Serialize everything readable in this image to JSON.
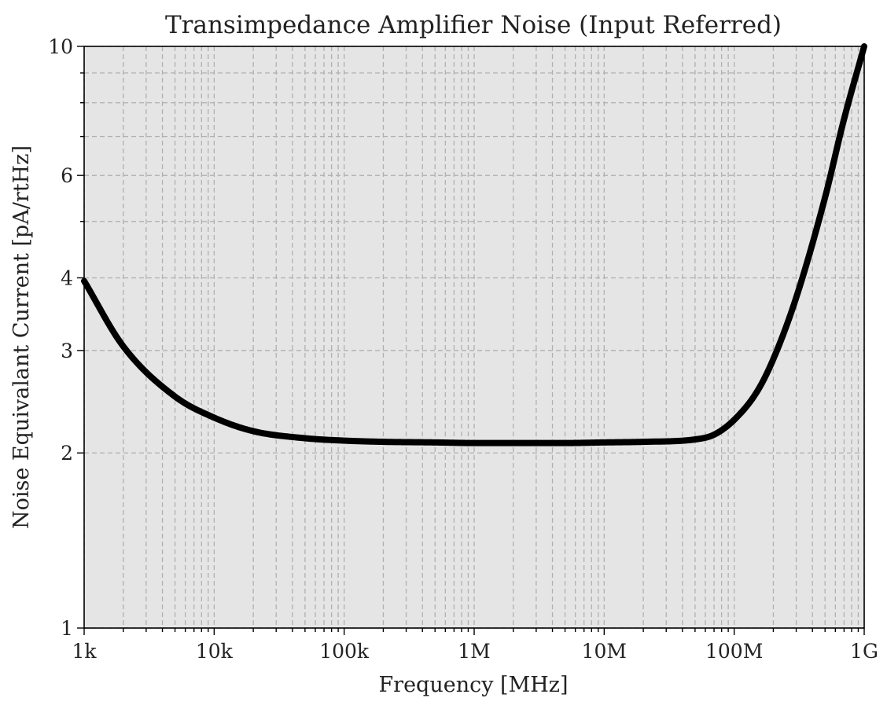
{
  "chart_data": {
    "type": "line",
    "title": "Transimpedance Amplifier Noise (Input Referred)",
    "xlabel": "Frequency [MHz]",
    "ylabel": "Noise Equivalant Current [pA/rtHz]",
    "x_scale": "log",
    "y_scale": "log",
    "xlim": [
      1000,
      1000000000
    ],
    "ylim": [
      1,
      10
    ],
    "grid": true,
    "x_ticks": [
      {
        "value": 1000,
        "label": "1k"
      },
      {
        "value": 10000,
        "label": "10k"
      },
      {
        "value": 100000,
        "label": "100k"
      },
      {
        "value": 1000000,
        "label": "1M"
      },
      {
        "value": 10000000,
        "label": "10M"
      },
      {
        "value": 100000000,
        "label": "100M"
      },
      {
        "value": 1000000000,
        "label": "1G"
      }
    ],
    "y_ticks": [
      {
        "value": 1,
        "label": "1"
      },
      {
        "value": 2,
        "label": "2"
      },
      {
        "value": 3,
        "label": "3"
      },
      {
        "value": 4,
        "label": "4"
      },
      {
        "value": 6,
        "label": "6"
      },
      {
        "value": 10,
        "label": "10"
      }
    ],
    "series": [
      {
        "color": "#000000",
        "x": [
          1000,
          2000,
          5000,
          10000,
          20000,
          50000,
          100000,
          200000,
          500000,
          1000000,
          2000000,
          5000000,
          10000000,
          20000000,
          50000000,
          70000000,
          100000000,
          150000000,
          200000000,
          300000000,
          500000000,
          700000000,
          1000000000
        ],
        "y": [
          3.95,
          3.05,
          2.5,
          2.3,
          2.18,
          2.12,
          2.1,
          2.09,
          2.085,
          2.08,
          2.08,
          2.08,
          2.085,
          2.09,
          2.11,
          2.15,
          2.28,
          2.55,
          2.9,
          3.7,
          5.5,
          7.5,
          10.0
        ]
      }
    ]
  }
}
